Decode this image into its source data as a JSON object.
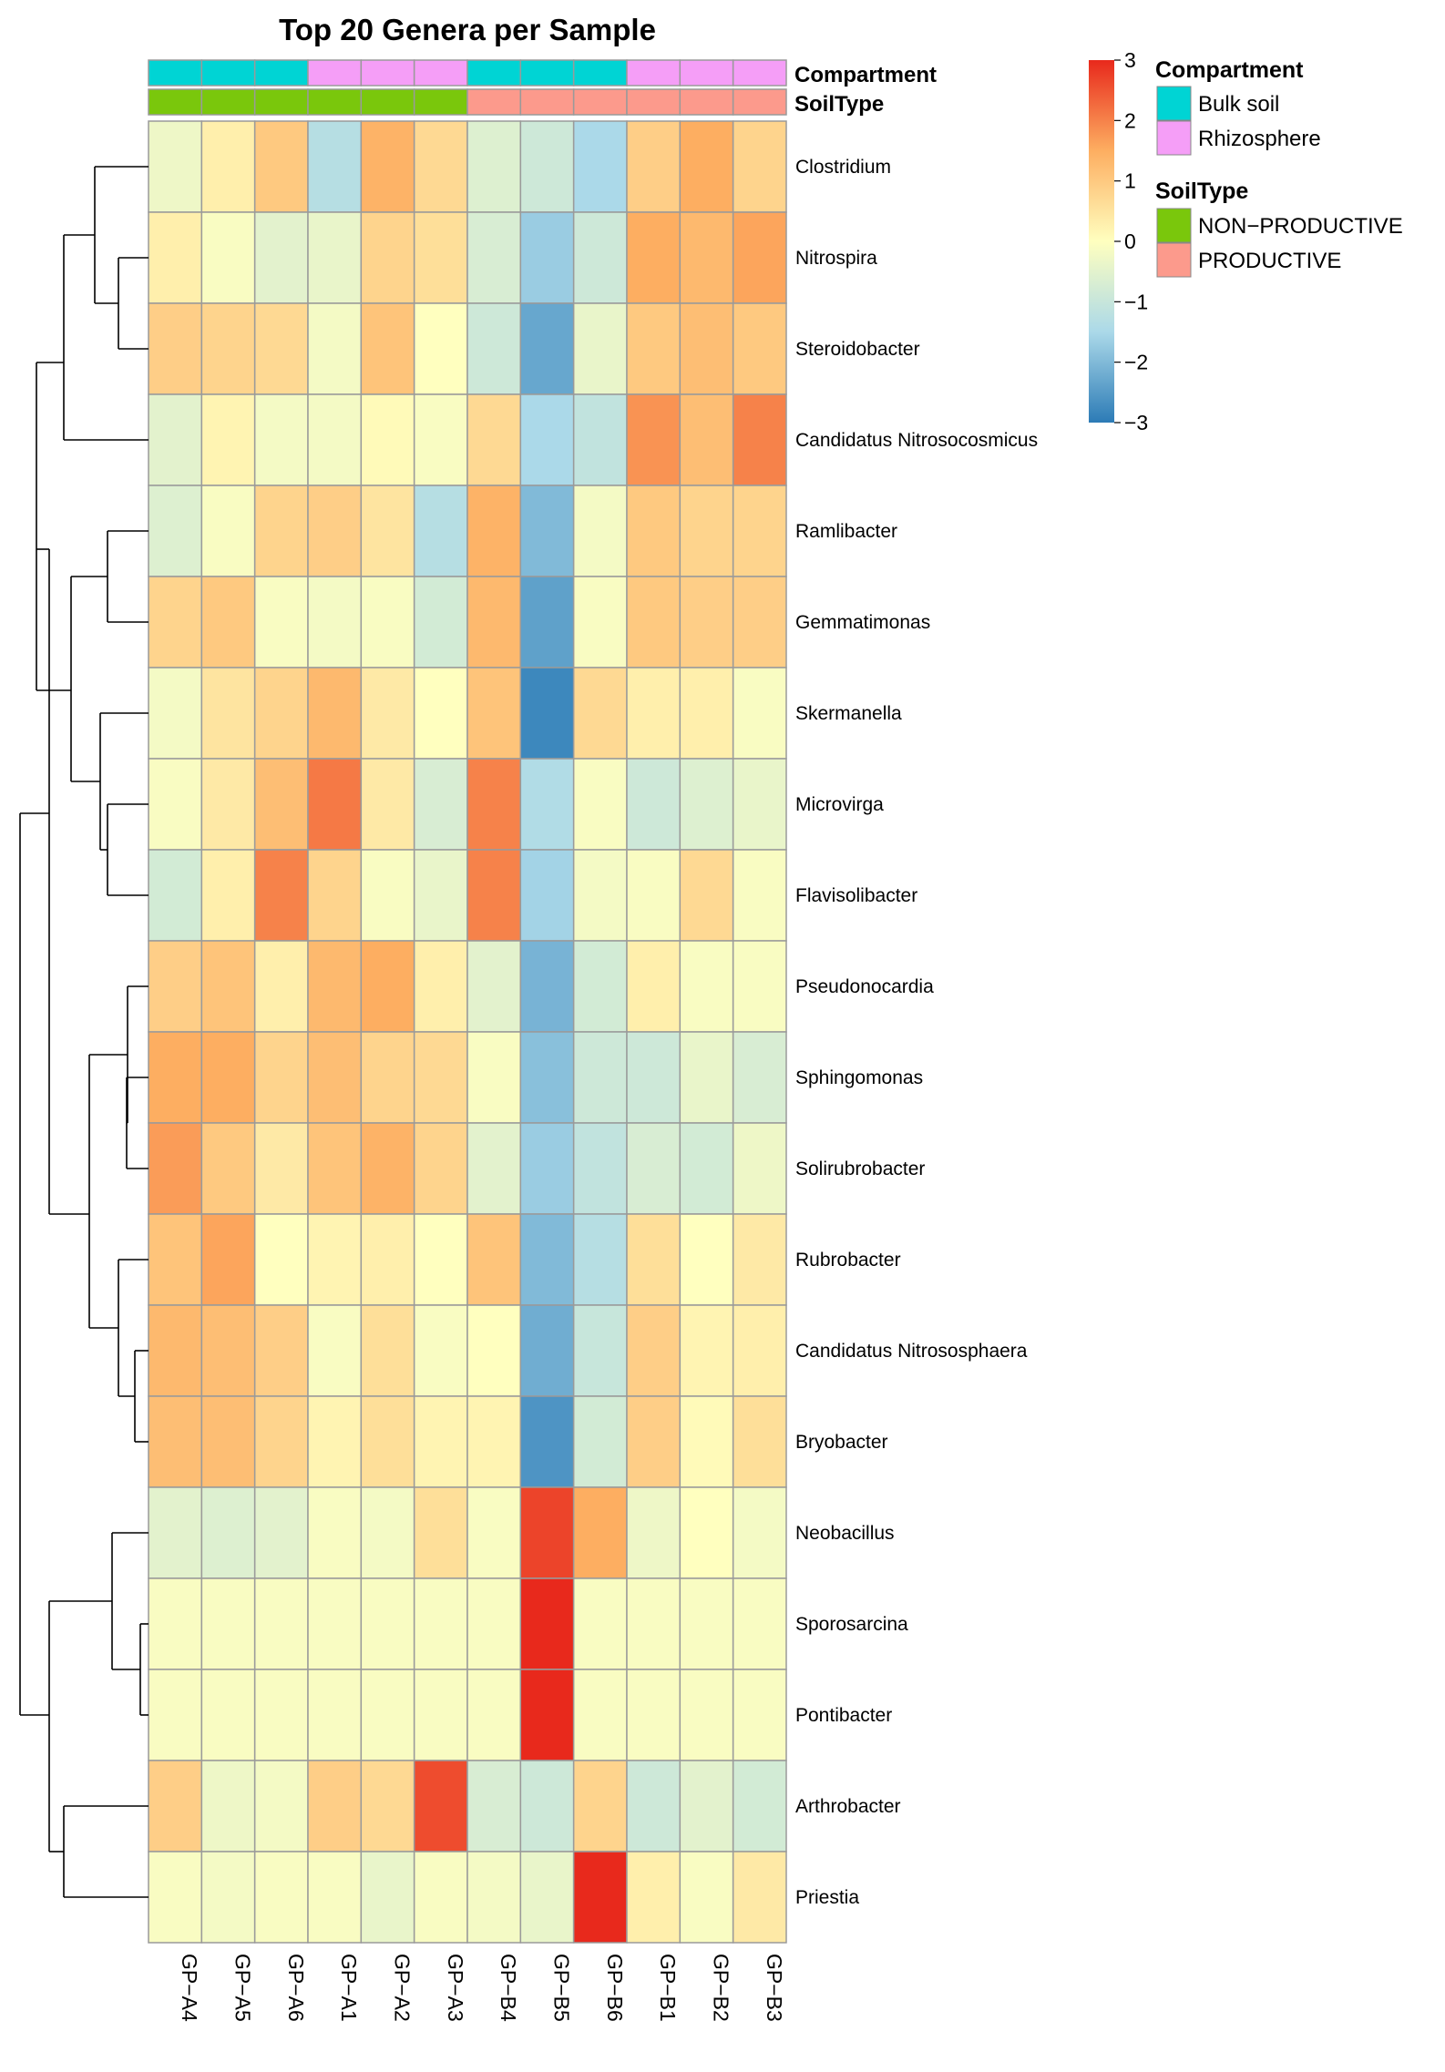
{
  "chart_data": {
    "type": "heatmap",
    "title": "Top 20 Genera per Sample",
    "columns": [
      "GP−A4",
      "GP−A5",
      "GP−A6",
      "GP−A1",
      "GP−A2",
      "GP−A3",
      "GP−B4",
      "GP−B5",
      "GP−B6",
      "GP−B1",
      "GP−B2",
      "GP−B3"
    ],
    "rows": [
      "Clostridium",
      "Nitrospira",
      "Steroidobacter",
      "Candidatus Nitrosocosmicus",
      "Ramlibacter",
      "Gemmatimonas",
      "Skermanella",
      "Microvirga",
      "Flavisolibacter",
      "Pseudonocardia",
      "Sphingomonas",
      "Solirubrobacter",
      "Rubrobacter",
      "Candidatus Nitrososphaera",
      "Bryobacter",
      "Neobacillus",
      "Sporosarcina",
      "Pontibacter",
      "Arthrobacter",
      "Priestia"
    ],
    "values": [
      [
        -0.3,
        0.3,
        1.0,
        -1.3,
        1.4,
        0.7,
        -0.6,
        -0.9,
        -1.5,
        0.9,
        1.5,
        0.8
      ],
      [
        0.3,
        -0.1,
        -0.5,
        -0.4,
        0.8,
        0.6,
        -0.7,
        -1.7,
        -0.9,
        1.5,
        1.3,
        1.6
      ],
      [
        0.9,
        0.8,
        0.7,
        -0.2,
        1.1,
        0.0,
        -0.9,
        -2.3,
        -0.4,
        1.0,
        1.2,
        1.0
      ],
      [
        -0.5,
        0.2,
        -0.2,
        -0.2,
        0.1,
        -0.1,
        0.7,
        -1.5,
        -1.1,
        1.8,
        1.2,
        2.0
      ],
      [
        -0.6,
        -0.1,
        0.8,
        0.9,
        0.5,
        -1.3,
        1.4,
        -2.0,
        -0.2,
        1.0,
        0.8,
        0.8
      ],
      [
        0.8,
        1.0,
        -0.1,
        -0.2,
        -0.1,
        -0.8,
        1.3,
        -2.4,
        -0.1,
        1.0,
        0.9,
        0.9
      ],
      [
        -0.2,
        0.5,
        0.8,
        1.3,
        0.4,
        0.0,
        1.1,
        -2.8,
        0.7,
        0.3,
        0.3,
        -0.1
      ],
      [
        -0.1,
        0.4,
        1.2,
        2.1,
        0.4,
        -0.7,
        2.0,
        -1.4,
        -0.1,
        -0.9,
        -0.6,
        -0.4
      ],
      [
        -0.8,
        0.3,
        2.0,
        0.8,
        -0.1,
        -0.4,
        2.0,
        -1.6,
        -0.2,
        -0.1,
        0.7,
        -0.1
      ],
      [
        0.9,
        1.1,
        0.3,
        1.3,
        1.5,
        0.3,
        -0.5,
        -2.1,
        -0.8,
        0.3,
        -0.1,
        -0.1
      ],
      [
        1.5,
        1.5,
        0.8,
        1.2,
        0.8,
        0.7,
        -0.1,
        -1.9,
        -0.9,
        -0.9,
        -0.4,
        -0.7
      ],
      [
        1.7,
        1.0,
        0.4,
        1.1,
        1.4,
        0.8,
        -0.5,
        -1.7,
        -1.1,
        -0.7,
        -0.8,
        -0.3
      ],
      [
        1.1,
        1.6,
        0.0,
        0.2,
        0.3,
        0.0,
        1.1,
        -2.0,
        -1.3,
        0.6,
        0.0,
        0.4
      ],
      [
        1.3,
        1.2,
        0.9,
        -0.1,
        0.6,
        -0.1,
        0.0,
        -2.2,
        -1.0,
        0.9,
        0.2,
        0.3
      ],
      [
        1.2,
        1.2,
        0.8,
        0.2,
        0.6,
        0.2,
        0.2,
        -2.6,
        -0.8,
        0.9,
        0.1,
        0.6
      ],
      [
        -0.5,
        -0.6,
        -0.5,
        -0.1,
        -0.2,
        0.6,
        -0.1,
        2.7,
        1.5,
        -0.3,
        0.0,
        -0.2
      ],
      [
        -0.1,
        -0.1,
        -0.1,
        -0.1,
        -0.1,
        -0.1,
        -0.1,
        3.1,
        -0.1,
        -0.1,
        -0.1,
        -0.1
      ],
      [
        -0.1,
        -0.1,
        -0.1,
        -0.1,
        -0.1,
        -0.1,
        -0.1,
        3.1,
        -0.1,
        -0.1,
        -0.1,
        -0.1
      ],
      [
        0.9,
        -0.3,
        -0.2,
        0.9,
        0.7,
        2.6,
        -0.7,
        -0.9,
        0.8,
        -0.9,
        -0.5,
        -0.8
      ],
      [
        -0.1,
        -0.2,
        -0.1,
        -0.1,
        -0.4,
        -0.1,
        -0.2,
        -0.4,
        3.1,
        0.3,
        -0.1,
        0.4
      ]
    ],
    "color_scale": {
      "min": -3,
      "max": 3,
      "ticks": [
        "3",
        "2",
        "1",
        "0",
        "−1",
        "−2",
        "−3"
      ],
      "colors": [
        "#2c7bb6",
        "#abd9e9",
        "#ffffbf",
        "#fdae61",
        "#e8291c"
      ]
    },
    "annotations": {
      "compartment": {
        "label": "Compartment",
        "values": [
          "Bulk soil",
          "Bulk soil",
          "Bulk soil",
          "Rhizosphere",
          "Rhizosphere",
          "Rhizosphere",
          "Bulk soil",
          "Bulk soil",
          "Bulk soil",
          "Rhizosphere",
          "Rhizosphere",
          "Rhizosphere"
        ]
      },
      "soiltype": {
        "label": "SoilType",
        "values": [
          "NON−PRODUCTIVE",
          "NON−PRODUCTIVE",
          "NON−PRODUCTIVE",
          "NON−PRODUCTIVE",
          "NON−PRODUCTIVE",
          "NON−PRODUCTIVE",
          "PRODUCTIVE",
          "PRODUCTIVE",
          "PRODUCTIVE",
          "PRODUCTIVE",
          "PRODUCTIVE",
          "PRODUCTIVE"
        ]
      }
    },
    "legend": {
      "compartment": {
        "title": "Compartment",
        "items": [
          {
            "label": "Bulk soil",
            "color": "#00d4d4"
          },
          {
            "label": "Rhizosphere",
            "color": "#f59ef7"
          }
        ]
      },
      "soiltype": {
        "title": "SoilType",
        "items": [
          {
            "label": "NON−PRODUCTIVE",
            "color": "#7ac70c"
          },
          {
            "label": "PRODUCTIVE",
            "color": "#fc9a8c"
          }
        ]
      }
    },
    "row_dendrogram": true,
    "grid": true
  }
}
